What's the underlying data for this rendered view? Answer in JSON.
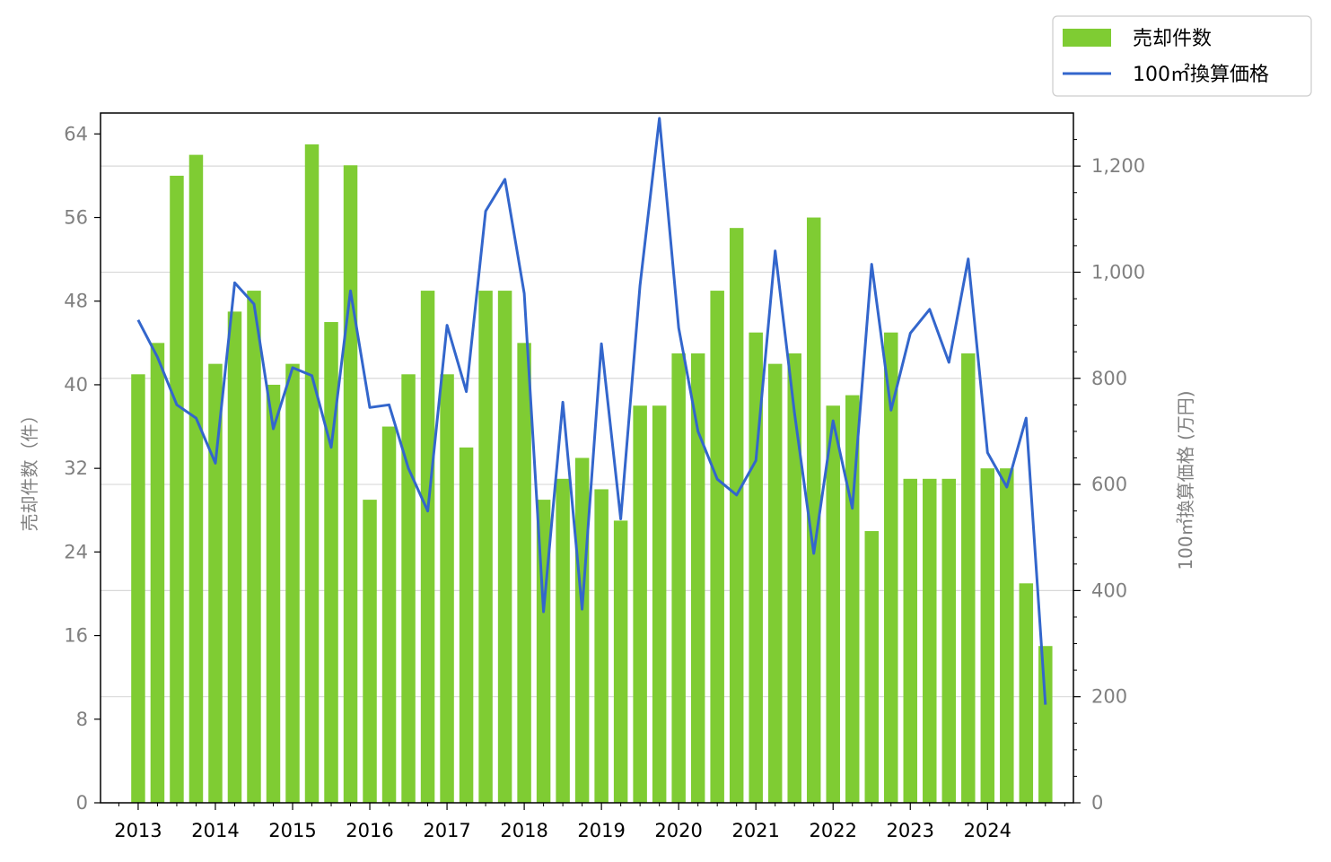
{
  "chart_data": {
    "type": "bar",
    "title": "",
    "x": [
      "2013 Q1",
      "2013 Q2",
      "2013 Q3",
      "2013 Q4",
      "2014 Q1",
      "2014 Q2",
      "2014 Q3",
      "2014 Q4",
      "2015 Q1",
      "2015 Q2",
      "2015 Q3",
      "2015 Q4",
      "2016 Q1",
      "2016 Q2",
      "2016 Q3",
      "2016 Q4",
      "2017 Q1",
      "2017 Q2",
      "2017 Q3",
      "2017 Q4",
      "2018 Q1",
      "2018 Q2",
      "2018 Q3",
      "2018 Q4",
      "2019 Q1",
      "2019 Q2",
      "2019 Q3",
      "2019 Q4",
      "2020 Q1",
      "2020 Q2",
      "2020 Q3",
      "2020 Q4",
      "2021 Q1",
      "2021 Q2",
      "2021 Q3",
      "2021 Q4",
      "2022 Q1",
      "2022 Q2",
      "2022 Q3",
      "2022 Q4",
      "2023 Q1",
      "2023 Q2",
      "2023 Q3",
      "2023 Q4",
      "2024 Q1",
      "2024 Q2",
      "2024 Q3",
      "2024 Q4"
    ],
    "x_tick_labels": [
      "2013",
      "2014",
      "2015",
      "2016",
      "2017",
      "2018",
      "2019",
      "2020",
      "2021",
      "2022",
      "2023",
      "2024"
    ],
    "series": [
      {
        "name": "売却件数",
        "type": "bar",
        "axis": "left",
        "color": "#7fcc33",
        "values": [
          41,
          44,
          60,
          62,
          42,
          47,
          49,
          40,
          42,
          63,
          46,
          61,
          29,
          36,
          41,
          49,
          41,
          34,
          49,
          49,
          44,
          29,
          31,
          33,
          30,
          27,
          38,
          38,
          43,
          43,
          49,
          55,
          45,
          42,
          43,
          56,
          38,
          39,
          26,
          45,
          31,
          31,
          31,
          43,
          32,
          32,
          21,
          15
        ]
      },
      {
        "name": "100㎡換算価格",
        "type": "line",
        "axis": "right",
        "color": "#3366cc",
        "values": [
          910,
          840,
          750,
          725,
          640,
          980,
          940,
          705,
          820,
          805,
          670,
          965,
          745,
          750,
          630,
          550,
          900,
          775,
          1115,
          1175,
          960,
          360,
          755,
          365,
          865,
          535,
          975,
          1290,
          895,
          700,
          610,
          580,
          645,
          1040,
          735,
          470,
          720,
          555,
          1015,
          740,
          885,
          930,
          830,
          1025,
          660,
          595,
          725,
          185
        ]
      }
    ],
    "y_left": {
      "label": "売却件数（件）",
      "ylim": [
        0,
        66
      ],
      "ticks": [
        0,
        8,
        16,
        24,
        32,
        40,
        48,
        56,
        64
      ]
    },
    "y_right": {
      "label": "100㎡換算価格 (万円)",
      "ylim": [
        0,
        1300
      ],
      "ticks": [
        0,
        200,
        400,
        600,
        800,
        1000,
        1200
      ],
      "tick_labels": [
        "0",
        "200",
        "400",
        "600",
        "800",
        "1,000",
        "1,200"
      ]
    },
    "grid": "horizontal (right axis)",
    "legend": "top-right, outside plot"
  }
}
